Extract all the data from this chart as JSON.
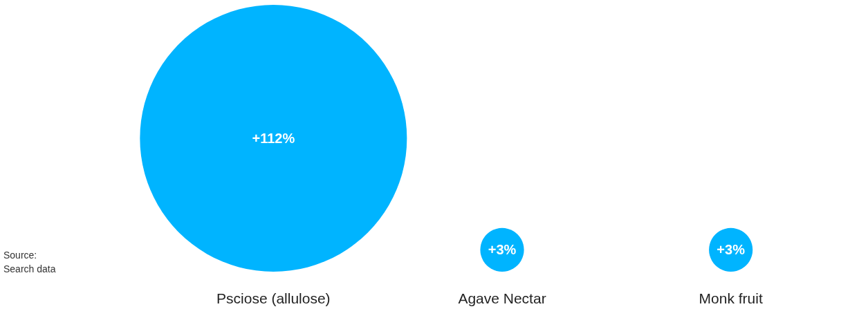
{
  "chart_data": {
    "type": "other",
    "categories": [
      "Psciose (allulose)",
      "Agave Nectar",
      "Monk fruit"
    ],
    "values": [
      112,
      3,
      3
    ],
    "value_labels": [
      "+112%",
      "+3%",
      "+3%"
    ],
    "color": "#00b4ff",
    "annotations": [
      "Source:",
      "Search data"
    ]
  }
}
